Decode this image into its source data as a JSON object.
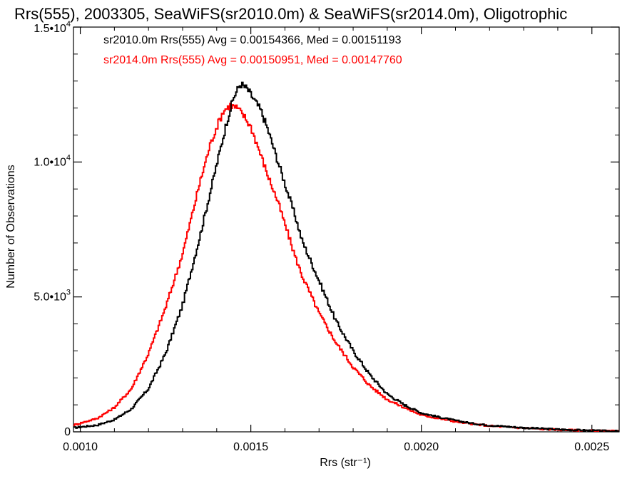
{
  "chart_data": {
    "type": "histogram",
    "title": "Rrs(555), 2003305, SeaWiFS(sr2010.0m) & SeaWiFS(sr2014.0m), Oligotrophic",
    "xlabel": "Rrs (str⁻¹)",
    "ylabel": "Number of Observations",
    "xlim": [
      0.00098,
      0.00258
    ],
    "ylim": [
      0,
      15000
    ],
    "x_ticks": [
      {
        "value": 0.001,
        "label": "0.0010"
      },
      {
        "value": 0.0015,
        "label": "0.0015"
      },
      {
        "value": 0.002,
        "label": "0.0020"
      },
      {
        "value": 0.0025,
        "label": "0.0025"
      }
    ],
    "y_ticks": [
      {
        "value": 0,
        "label": "0",
        "exp": ""
      },
      {
        "value": 5000,
        "label": "5.0•10",
        "exp": "3"
      },
      {
        "value": 10000,
        "label": "1.0•10",
        "exp": "4"
      },
      {
        "value": 15000,
        "label": "1.5•10",
        "exp": "4"
      }
    ],
    "series": [
      {
        "name": "sr2010.0m",
        "color": "#000000",
        "stats_text": "sr2010.0m Rrs(555) Avg = 0.00154366, Med = 0.00151193",
        "points": [
          [
            0.00098,
            150
          ],
          [
            0.00105,
            250
          ],
          [
            0.0011,
            450
          ],
          [
            0.00115,
            850
          ],
          [
            0.0012,
            1600
          ],
          [
            0.00125,
            2900
          ],
          [
            0.0013,
            4700
          ],
          [
            0.00135,
            7200
          ],
          [
            0.0014,
            9900
          ],
          [
            0.00143,
            11500
          ],
          [
            0.00145,
            12400
          ],
          [
            0.00147,
            12900
          ],
          [
            0.00149,
            12700
          ],
          [
            0.00151,
            12300
          ],
          [
            0.00153,
            11900
          ],
          [
            0.00155,
            11200
          ],
          [
            0.00158,
            10000
          ],
          [
            0.0016,
            9200
          ],
          [
            0.00163,
            8000
          ],
          [
            0.00165,
            7100
          ],
          [
            0.0017,
            5600
          ],
          [
            0.00175,
            4100
          ],
          [
            0.0018,
            3000
          ],
          [
            0.00185,
            2100
          ],
          [
            0.0019,
            1400
          ],
          [
            0.00195,
            1000
          ],
          [
            0.002,
            700
          ],
          [
            0.00205,
            550
          ],
          [
            0.0021,
            420
          ],
          [
            0.00215,
            310
          ],
          [
            0.0022,
            240
          ],
          [
            0.0023,
            150
          ],
          [
            0.0024,
            90
          ],
          [
            0.0025,
            45
          ],
          [
            0.00258,
            20
          ]
        ]
      },
      {
        "name": "sr2014.0m",
        "color": "#ff0000",
        "stats_text": "sr2014.0m Rrs(555) Avg = 0.00150951, Med = 0.00147760",
        "points": [
          [
            0.00098,
            250
          ],
          [
            0.00105,
            500
          ],
          [
            0.0011,
            900
          ],
          [
            0.00115,
            1600
          ],
          [
            0.0012,
            2900
          ],
          [
            0.00125,
            4600
          ],
          [
            0.0013,
            6600
          ],
          [
            0.00135,
            9200
          ],
          [
            0.00138,
            10600
          ],
          [
            0.0014,
            11300
          ],
          [
            0.00142,
            11900
          ],
          [
            0.00144,
            12100
          ],
          [
            0.00146,
            12000
          ],
          [
            0.00148,
            11700
          ],
          [
            0.0015,
            11300
          ],
          [
            0.00152,
            10600
          ],
          [
            0.00155,
            9500
          ],
          [
            0.00158,
            8500
          ],
          [
            0.0016,
            7700
          ],
          [
            0.00163,
            6500
          ],
          [
            0.00165,
            5800
          ],
          [
            0.0017,
            4400
          ],
          [
            0.00175,
            3300
          ],
          [
            0.0018,
            2400
          ],
          [
            0.00185,
            1700
          ],
          [
            0.0019,
            1200
          ],
          [
            0.00195,
            900
          ],
          [
            0.002,
            620
          ],
          [
            0.00205,
            500
          ],
          [
            0.0021,
            380
          ],
          [
            0.00215,
            290
          ],
          [
            0.0022,
            220
          ],
          [
            0.0023,
            140
          ],
          [
            0.0024,
            80
          ],
          [
            0.0025,
            40
          ],
          [
            0.00258,
            20
          ]
        ]
      }
    ]
  }
}
